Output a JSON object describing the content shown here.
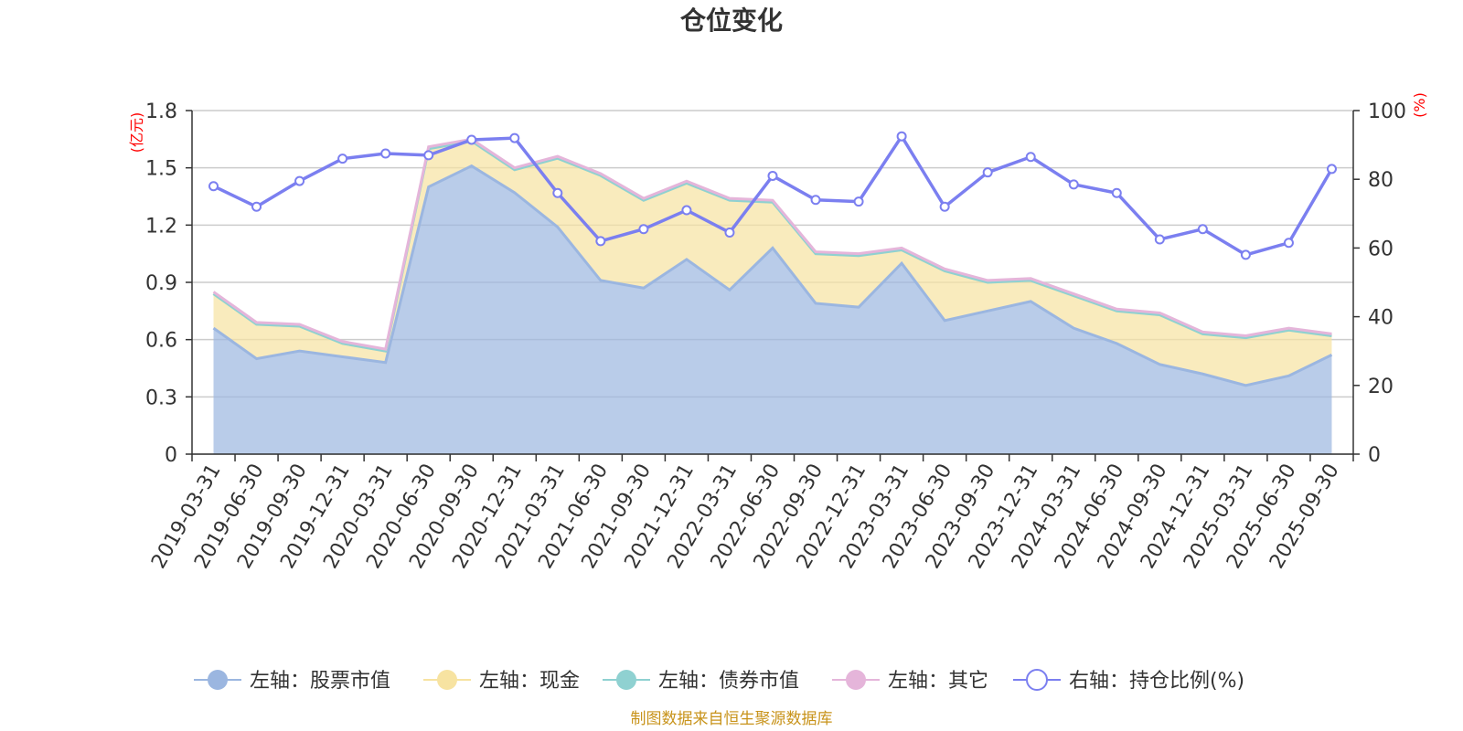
{
  "chart_data": {
    "type": "area",
    "title": "仓位变化",
    "left_axis": {
      "unit": "(亿元)",
      "ticks": [
        "0",
        "0.3",
        "0.6",
        "0.9",
        "1.2",
        "1.5",
        "1.8"
      ],
      "ylim": [
        0,
        1.8
      ]
    },
    "right_axis": {
      "unit": "(%)",
      "ticks": [
        "0",
        "20",
        "40",
        "60",
        "80",
        "100"
      ],
      "ylim": [
        0,
        100
      ]
    },
    "categories": [
      "2019-03-31",
      "2019-06-30",
      "2019-09-30",
      "2019-12-31",
      "2020-03-31",
      "2020-06-30",
      "2020-09-30",
      "2020-12-31",
      "2021-03-31",
      "2021-06-30",
      "2021-09-30",
      "2021-12-31",
      "2022-03-31",
      "2022-06-30",
      "2022-09-30",
      "2022-12-31",
      "2023-03-31",
      "2023-06-30",
      "2023-09-30",
      "2023-12-31",
      "2024-03-31",
      "2024-06-30",
      "2024-09-30",
      "2024-12-31",
      "2025-03-31",
      "2025-06-30",
      "2025-09-30"
    ],
    "series": [
      {
        "name": "左轴：股票市值",
        "axis": "left",
        "color": "#9bb6e0",
        "values": [
          0.66,
          0.5,
          0.54,
          0.51,
          0.48,
          1.4,
          1.51,
          1.37,
          1.19,
          0.91,
          0.87,
          1.02,
          0.86,
          1.08,
          0.79,
          0.77,
          1.0,
          0.7,
          0.75,
          0.8,
          0.66,
          0.58,
          0.47,
          0.42,
          0.36,
          0.41,
          0.52
        ]
      },
      {
        "name": "左轴：现金",
        "axis": "left",
        "color": "#f7e3a1",
        "values": [
          0.18,
          0.18,
          0.13,
          0.07,
          0.06,
          0.2,
          0.13,
          0.12,
          0.36,
          0.55,
          0.46,
          0.4,
          0.47,
          0.24,
          0.26,
          0.27,
          0.07,
          0.26,
          0.15,
          0.11,
          0.17,
          0.17,
          0.26,
          0.21,
          0.25,
          0.24,
          0.1
        ]
      },
      {
        "name": "左轴：债券市值",
        "axis": "left",
        "color": "#8fd1d1",
        "values": [
          0,
          0,
          0,
          0,
          0,
          0,
          0,
          0,
          0,
          0,
          0,
          0,
          0,
          0,
          0,
          0,
          0,
          0,
          0,
          0,
          0,
          0,
          0,
          0,
          0,
          0,
          0
        ]
      },
      {
        "name": "左轴：其它",
        "axis": "left",
        "color": "#e5b5da",
        "values": [
          0.01,
          0.01,
          0.01,
          0.01,
          0.01,
          0.01,
          0.01,
          0.01,
          0.01,
          0.01,
          0.01,
          0.01,
          0.01,
          0.01,
          0.01,
          0.01,
          0.01,
          0.01,
          0.01,
          0.01,
          0.01,
          0.01,
          0.01,
          0.01,
          0.01,
          0.01,
          0.01
        ]
      },
      {
        "name": "右轴：持仓比例(%)",
        "axis": "right",
        "color": "#7b7ff0",
        "values": [
          78,
          72,
          79.5,
          86,
          87.5,
          87,
          91.5,
          92,
          76,
          62,
          65.5,
          71,
          64.5,
          81,
          74,
          73.5,
          92.5,
          72,
          82,
          86.5,
          78.5,
          76,
          62.5,
          65.5,
          58,
          61.5,
          83
        ]
      }
    ],
    "legend_position": "bottom",
    "grid": true
  },
  "source_text": "制图数据来自恒生聚源数据库"
}
